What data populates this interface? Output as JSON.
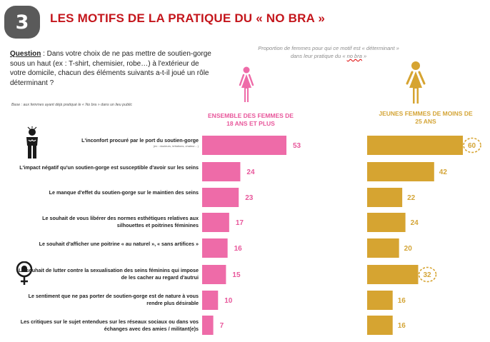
{
  "header": {
    "number": "3",
    "title": "LES MOTIFS DE LA PRATIQUE DU « NO BRA »"
  },
  "question": {
    "label": "Question",
    "text": " : Dans votre choix de ne pas mettre de soutien-gorge sous un haut (ex : T-shirt, chemisier, robe…) à l'extérieur de votre domicile, chacun des éléments suivants a-t-il joué un rôle déterminant ?",
    "base": "Base : aux femmes ayant déjà pratiqué le « No bra » dans un lieu public"
  },
  "proportion_note": {
    "line1": "Proportion de femmes pour qui ce motif est « déterminant »",
    "line2_prefix": "dans leur pratique du « ",
    "line2_nobra": "no bra",
    "line2_suffix": " »"
  },
  "groups": {
    "pink": "ENSEMBLE DES FEMMES DE 18 ANS ET PLUS",
    "gold": "JEUNES FEMMES DE MOINS DE 25 ANS"
  },
  "colors": {
    "pink": "#ee6ba8",
    "gold": "#d6a431",
    "title_red": "#c4161c",
    "badge_grey": "#5a5a5a"
  },
  "icons": [
    "bra-person-icon",
    "female-symbol-icon",
    "woman-pink-icon",
    "woman-gold-icon"
  ],
  "rows": [
    {
      "label": "L'inconfort procuré par le port du soutien-gorge",
      "sub": "(ex : douleurs, irritations, chaleur…)"
    },
    {
      "label": "L'impact négatif qu'un soutien-gorge est susceptible d'avoir sur les seins",
      "sub": ""
    },
    {
      "label": "Le manque d'effet du soutien-gorge sur le maintien des seins",
      "sub": ""
    },
    {
      "label": "Le souhait de vous libérer des normes esthétiques relatives aux silhouettes et poitrines féminines",
      "sub": ""
    },
    {
      "label": "Le souhait d'afficher une poitrine « au naturel », « sans artifices »",
      "sub": ""
    },
    {
      "label": "Le souhait de lutter contre la sexualisation des seins féminins qui impose de les cacher au regard d'autrui",
      "sub": ""
    },
    {
      "label": "Le sentiment que ne pas porter de soutien-gorge est de nature à vous rendre plus désirable",
      "sub": ""
    },
    {
      "label": "Les critiques sur le sujet entendues sur les réseaux sociaux ou dans vos échanges avec des amies / militant(e)s",
      "sub": ""
    }
  ],
  "chart_data": {
    "type": "bar",
    "orientation": "horizontal",
    "categories": [
      "L'inconfort procuré par le port du soutien-gorge",
      "L'impact négatif qu'un soutien-gorge est susceptible d'avoir sur les seins",
      "Le manque d'effet du soutien-gorge sur le maintien des seins",
      "Le souhait de vous libérer des normes esthétiques relatives aux silhouettes et poitrines féminines",
      "Le souhait d'afficher une poitrine « au naturel », « sans artifices »",
      "Le souhait de lutter contre la sexualisation des seins féminins qui impose de les cacher au regard d'autrui",
      "Le sentiment que ne pas porter de soutien-gorge est de nature à vous rendre plus désirable",
      "Les critiques sur le sujet entendues sur les réseaux sociaux ou dans vos échanges avec des amies / militant(e)s"
    ],
    "series": [
      {
        "name": "ENSEMBLE DES FEMMES DE 18 ANS ET PLUS",
        "color": "#ee6ba8",
        "values": [
          53,
          24,
          23,
          17,
          16,
          15,
          10,
          7
        ]
      },
      {
        "name": "JEUNES FEMMES DE MOINS DE 25 ANS",
        "color": "#d6a431",
        "values": [
          60,
          42,
          22,
          24,
          20,
          32,
          16,
          16
        ],
        "circled": [
          0,
          5
        ]
      }
    ],
    "xlim": [
      0,
      60
    ],
    "grid": false
  }
}
